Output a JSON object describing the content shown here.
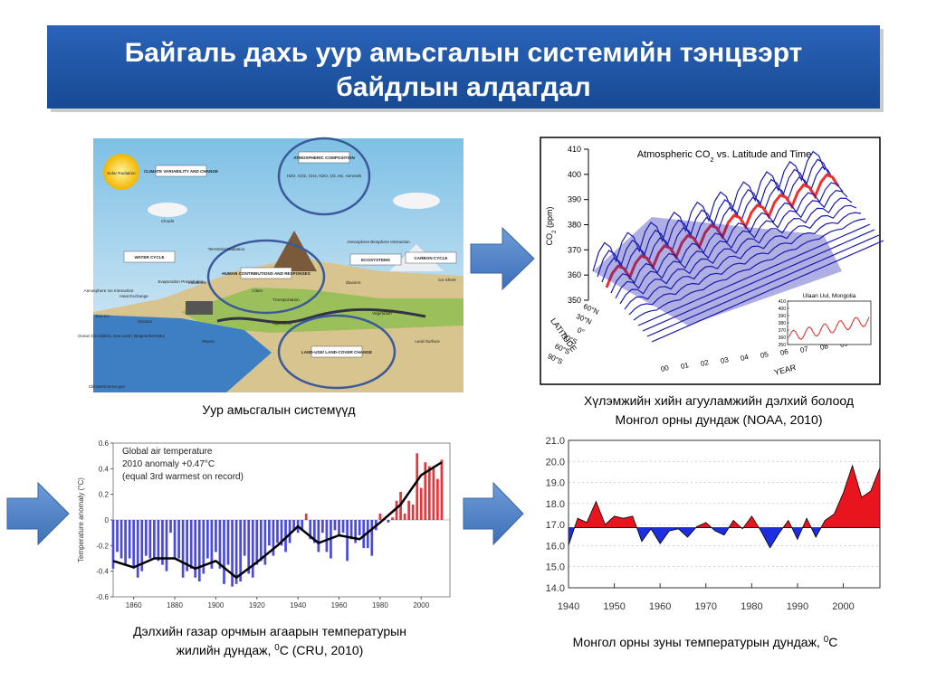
{
  "title": [
    "Байгаль дахь уур амьсгалын системийн тэнцвэрт",
    "байдлын алдагдал"
  ],
  "diagram": {
    "labels": [
      "Solar Radiation",
      "CLIMATE VARIABILITY AND CHANGE",
      "ATMOSPHERIC COMPOSITION",
      "H2O, CO2, CH4, N2O, O3, etc. Aerosols",
      "Clouds",
      "WATER CYCLE",
      "HUMAN CONTRIBUTIONS AND RESPONSES",
      "ECOSYSTEMS",
      "CARBON CYCLE",
      "Atmosphere Ice Interaction",
      "Heat Exchange",
      "Evaporation Precipitation",
      "Industries",
      "Cities",
      "Transportation",
      "Agriculture",
      "Sea-Ice",
      "Oceans",
      "Ocean Circulation, Sea Level, Biogeochemistry",
      "Rivers",
      "LAND-USE/ LAND-COVER CHANGE",
      "Glaciers",
      "Ice Sheet",
      "Vegetation",
      "Land Surface",
      "Atmosphere Biosphere Interaction",
      "Terrestrial Radiation",
      "ClimateScience.gov"
    ],
    "caption": "Уур амьсгалын системүүд"
  },
  "co2_chart": {
    "title": [
      "Atmospheric CO",
      "2",
      " vs. Latitude and Time"
    ],
    "zlabel": [
      "CO",
      "2",
      " (ppm)"
    ],
    "zlim": [
      350,
      410
    ],
    "zticks": [
      350,
      360,
      370,
      380,
      390,
      400,
      410
    ],
    "latitude_label": "LATITUDE",
    "latitude_ticks": [
      "60°N",
      "30°N",
      "0°",
      "30°S",
      "60°S",
      "90°S"
    ],
    "year_label": "YEAR",
    "year_ticks": [
      "00",
      "01",
      "02",
      "03",
      "04",
      "05",
      "06",
      "07",
      "08",
      "09"
    ],
    "inset": {
      "title": "Ulaan Uul, Mongolia",
      "ylim": [
        350,
        410
      ],
      "yticks": [
        350,
        360,
        370,
        380,
        390,
        400,
        410
      ]
    },
    "caption": [
      "Хүлэмжийн хийн  агууламжийн дэлхий болоод",
      "Монгол орны дундаж (NOAA, 2010)"
    ]
  },
  "chart_data": [
    {
      "type": "bar",
      "annotations": [
        "Global air temperature",
        "2010 anomaly +0.47°C",
        "(equal 3rd warmest on record)"
      ],
      "ylabel": "Temperature anomaly (°C)",
      "xlim": [
        1850,
        2014
      ],
      "xticks": [
        1860,
        1880,
        1900,
        1920,
        1940,
        1960,
        1980,
        2000
      ],
      "ylim": [
        -0.6,
        0.6
      ],
      "yticks": [
        -0.6,
        -0.4,
        -0.2,
        0,
        0.2,
        0.4,
        0.6
      ],
      "color_positive": "#e8343a",
      "color_negative": "#4b4bd8",
      "x": [
        1850,
        1852,
        1854,
        1856,
        1858,
        1860,
        1862,
        1864,
        1866,
        1868,
        1870,
        1872,
        1874,
        1876,
        1878,
        1880,
        1882,
        1884,
        1886,
        1888,
        1890,
        1892,
        1894,
        1896,
        1898,
        1900,
        1902,
        1904,
        1906,
        1908,
        1910,
        1912,
        1914,
        1916,
        1918,
        1920,
        1922,
        1924,
        1926,
        1928,
        1930,
        1932,
        1934,
        1936,
        1938,
        1940,
        1942,
        1944,
        1946,
        1948,
        1950,
        1952,
        1954,
        1956,
        1958,
        1960,
        1962,
        1964,
        1966,
        1968,
        1970,
        1972,
        1974,
        1976,
        1978,
        1980,
        1982,
        1984,
        1986,
        1988,
        1990,
        1992,
        1994,
        1996,
        1998,
        2000,
        2002,
        2004,
        2006,
        2008,
        2010
      ],
      "values": [
        -0.38,
        -0.25,
        -0.3,
        -0.35,
        -0.3,
        -0.38,
        -0.45,
        -0.4,
        -0.28,
        -0.3,
        -0.3,
        -0.32,
        -0.35,
        -0.4,
        -0.1,
        -0.3,
        -0.3,
        -0.45,
        -0.4,
        -0.38,
        -0.45,
        -0.48,
        -0.42,
        -0.3,
        -0.38,
        -0.25,
        -0.38,
        -0.5,
        -0.35,
        -0.52,
        -0.5,
        -0.48,
        -0.28,
        -0.42,
        -0.45,
        -0.35,
        -0.32,
        -0.35,
        -0.2,
        -0.28,
        -0.18,
        -0.2,
        -0.25,
        -0.18,
        -0.08,
        -0.1,
        -0.08,
        0.05,
        -0.15,
        -0.18,
        -0.25,
        -0.1,
        -0.25,
        -0.3,
        -0.08,
        -0.12,
        -0.1,
        -0.32,
        -0.15,
        -0.18,
        -0.12,
        -0.22,
        -0.22,
        -0.28,
        -0.08,
        0.05,
        0.01,
        -0.02,
        0.02,
        0.15,
        0.22,
        0.05,
        0.15,
        0.12,
        0.52,
        0.25,
        0.45,
        0.42,
        0.42,
        0.32,
        0.47
      ],
      "smooth": {
        "color": "#000000",
        "x": [
          1850,
          1860,
          1870,
          1880,
          1890,
          1900,
          1910,
          1920,
          1930,
          1940,
          1950,
          1960,
          1970,
          1980,
          1990,
          2000,
          2010
        ],
        "values": [
          -0.32,
          -0.37,
          -0.3,
          -0.3,
          -0.38,
          -0.32,
          -0.45,
          -0.33,
          -0.2,
          -0.05,
          -0.18,
          -0.12,
          -0.15,
          -0.02,
          0.12,
          0.35,
          0.45
        ]
      },
      "caption": [
        "Дэлхийн газар орчмын агаарын температурын",
        "жилийн дундаж, ",
        "0",
        "C (CRU, 2010)"
      ]
    },
    {
      "type": "area",
      "xlim": [
        1940,
        2008
      ],
      "xticks": [
        1940,
        1950,
        1960,
        1970,
        1980,
        1990,
        2000
      ],
      "ylim": [
        14,
        21
      ],
      "yticks": [
        {
          "value": 14,
          "label": "14.0"
        },
        {
          "value": 15,
          "label": "15.0"
        },
        {
          "value": 16,
          "label": "16.0"
        },
        {
          "value": 17,
          "label": "17.0"
        },
        {
          "value": 18,
          "label": "18.0"
        },
        {
          "value": 19,
          "label": "19.0"
        },
        {
          "value": 20,
          "label": "20.0"
        },
        {
          "value": 21,
          "label": "21.0"
        }
      ],
      "baseline": 16.85,
      "color_above": "#e8141e",
      "color_below": "#1c2ee0",
      "x": [
        1940,
        1942,
        1944,
        1946,
        1948,
        1950,
        1952,
        1954,
        1956,
        1958,
        1960,
        1962,
        1964,
        1966,
        1968,
        1970,
        1972,
        1974,
        1976,
        1978,
        1980,
        1982,
        1984,
        1986,
        1988,
        1990,
        1992,
        1994,
        1996,
        1998,
        2000,
        2002,
        2004,
        2006,
        2008
      ],
      "values": [
        16.0,
        17.3,
        17.1,
        18.1,
        17.0,
        17.4,
        17.3,
        17.4,
        16.2,
        16.8,
        16.1,
        16.7,
        16.8,
        16.4,
        16.9,
        17.1,
        16.7,
        16.5,
        17.2,
        16.8,
        17.4,
        16.7,
        15.9,
        16.6,
        17.2,
        16.3,
        17.3,
        16.4,
        17.2,
        17.5,
        18.5,
        19.8,
        18.3,
        18.6,
        19.7
      ],
      "caption": [
        "Монгол орны зуны температурын дундаж, ",
        "0",
        "C"
      ]
    }
  ]
}
